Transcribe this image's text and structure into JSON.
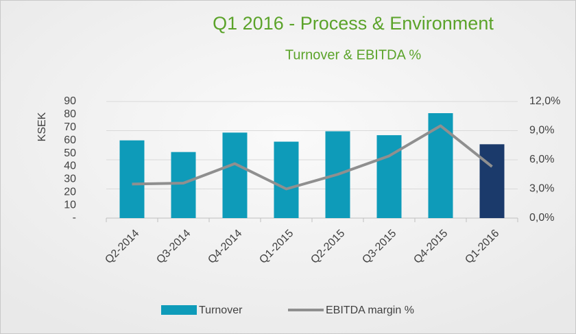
{
  "chart_data": {
    "type": "bar",
    "title": "Q1 2016 - Process & Environment",
    "subtitle": "Turnover & EBITDA %",
    "y_label": "KSEK",
    "categories": [
      "Q2-2014",
      "Q3-2014",
      "Q4-2014",
      "Q1-2015",
      "Q2-2015",
      "Q3-2015",
      "Q4-2015",
      "Q1-2016"
    ],
    "series": [
      {
        "name": "Turnover",
        "kind": "bar",
        "color": "#0e9bb9",
        "colors": [
          "#0e9bb9",
          "#0e9bb9",
          "#0e9bb9",
          "#0e9bb9",
          "#0e9bb9",
          "#0e9bb9",
          "#0e9bb9",
          "#1b3a6b"
        ],
        "values": [
          60,
          51,
          66,
          59,
          67,
          64,
          81,
          57
        ]
      },
      {
        "name": "EBITDA margin %",
        "kind": "line",
        "axis": "y2",
        "color": "#8f8f8f",
        "values": [
          3.5,
          3.6,
          5.6,
          3.0,
          4.5,
          6.4,
          9.5,
          5.3
        ]
      }
    ],
    "ylim": [
      0,
      90
    ],
    "yticks": [
      {
        "value": 0,
        "label": "-"
      },
      10,
      20,
      30,
      40,
      50,
      60,
      70,
      80,
      90
    ],
    "y2lim": [
      0,
      12
    ],
    "y2ticks": [
      {
        "value": 0,
        "label": "0,0%"
      },
      {
        "value": 3,
        "label": "3,0%"
      },
      {
        "value": 6,
        "label": "6,0%"
      },
      {
        "value": 9,
        "label": "9,0%"
      },
      {
        "value": 12,
        "label": "12,0%"
      }
    ],
    "legend": "bottom"
  }
}
